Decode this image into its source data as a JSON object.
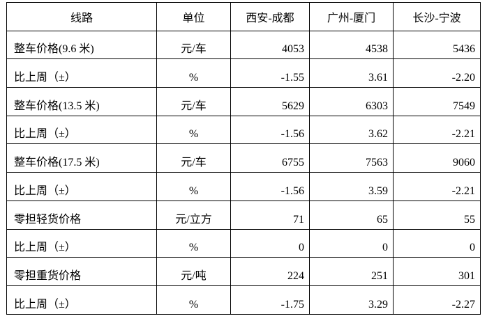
{
  "table": {
    "headers": [
      "线路",
      "单位",
      "西安-成都",
      "广州-厦门",
      "长沙-宁波"
    ],
    "rows": [
      [
        "整车价格(9.6 米)",
        "元/车",
        "4053",
        "4538",
        "5436"
      ],
      [
        "比上周（±）",
        "%",
        "-1.55",
        "3.61",
        "-2.20"
      ],
      [
        "整车价格(13.5 米)",
        "元/车",
        "5629",
        "6303",
        "7549"
      ],
      [
        "比上周（±）",
        "%",
        "-1.56",
        "3.62",
        "-2.21"
      ],
      [
        "整车价格(17.5 米)",
        "元/车",
        "6755",
        "7563",
        "9060"
      ],
      [
        "比上周（±）",
        "%",
        "-1.56",
        "3.59",
        "-2.21"
      ],
      [
        "零担轻货价格",
        "元/立方",
        "71",
        "65",
        "55"
      ],
      [
        "比上周（±）",
        "%",
        "0",
        "0",
        "0"
      ],
      [
        "零担重货价格",
        "元/吨",
        "224",
        "251",
        "301"
      ],
      [
        "比上周（±）",
        "%",
        "-1.75",
        "3.29",
        "-2.27"
      ]
    ]
  }
}
